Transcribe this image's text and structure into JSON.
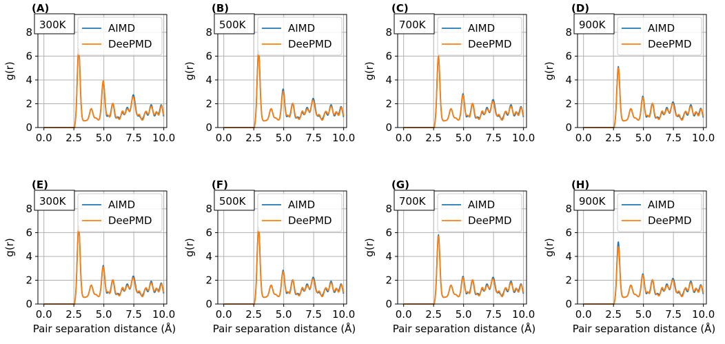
{
  "figure": {
    "ylabel": "g(r)",
    "xlabel": "Pair separation distance (Å)",
    "xticks": [
      "0.0",
      "2.5",
      "5.0",
      "7.5",
      "10.0"
    ],
    "yticks": [
      "0",
      "2",
      "4",
      "6",
      "8"
    ],
    "xlim": [
      -0.5,
      10.25
    ],
    "ylim": [
      0,
      9.5
    ]
  },
  "colors": {
    "aimd": "#1f77b4",
    "deepmd": "#ff7f0e",
    "grid": "#b0b0b0"
  },
  "legend": [
    "AIMD",
    "DeePMD"
  ],
  "chart_data": [
    {
      "panel": "(A)",
      "temp": "300K",
      "type": "line",
      "aimd_peaks": [
        6.4,
        3.5
      ],
      "deepmd_peaks": [
        6.3,
        3.6
      ],
      "tail": [
        2.4,
        2.1
      ]
    },
    {
      "panel": "(B)",
      "temp": "500K",
      "type": "line",
      "aimd_peaks": [
        6.2,
        2.9
      ],
      "deepmd_peaks": [
        6.0,
        2.7
      ],
      "tail": [
        2.1,
        1.9
      ]
    },
    {
      "panel": "(C)",
      "temp": "700K",
      "type": "line",
      "aimd_peaks": [
        5.7,
        2.5
      ],
      "deepmd_peaks": [
        5.8,
        2.4
      ],
      "tail": [
        2.0,
        1.9
      ]
    },
    {
      "panel": "(D)",
      "temp": "900K",
      "type": "line",
      "aimd_peaks": [
        4.9,
        2.3
      ],
      "deepmd_peaks": [
        4.8,
        2.2
      ],
      "tail": [
        1.8,
        1.7
      ]
    },
    {
      "panel": "(E)",
      "temp": "300K",
      "type": "line",
      "aimd_peaks": [
        6.3,
        2.9
      ],
      "deepmd_peaks": [
        6.3,
        2.8
      ],
      "tail": [
        2.0,
        1.9
      ]
    },
    {
      "panel": "(F)",
      "temp": "500K",
      "type": "line",
      "aimd_peaks": [
        6.2,
        2.5
      ],
      "deepmd_peaks": [
        6.1,
        2.4
      ],
      "tail": [
        1.9,
        1.8
      ]
    },
    {
      "panel": "(G)",
      "temp": "700K",
      "type": "line",
      "aimd_peaks": [
        5.6,
        2.0
      ],
      "deepmd_peaks": [
        5.5,
        1.9
      ],
      "tail": [
        1.9,
        1.8
      ]
    },
    {
      "panel": "(H)",
      "temp": "900K",
      "type": "line",
      "aimd_peaks": [
        5.0,
        2.2
      ],
      "deepmd_peaks": [
        4.6,
        2.1
      ],
      "tail": [
        1.8,
        1.7
      ]
    }
  ]
}
